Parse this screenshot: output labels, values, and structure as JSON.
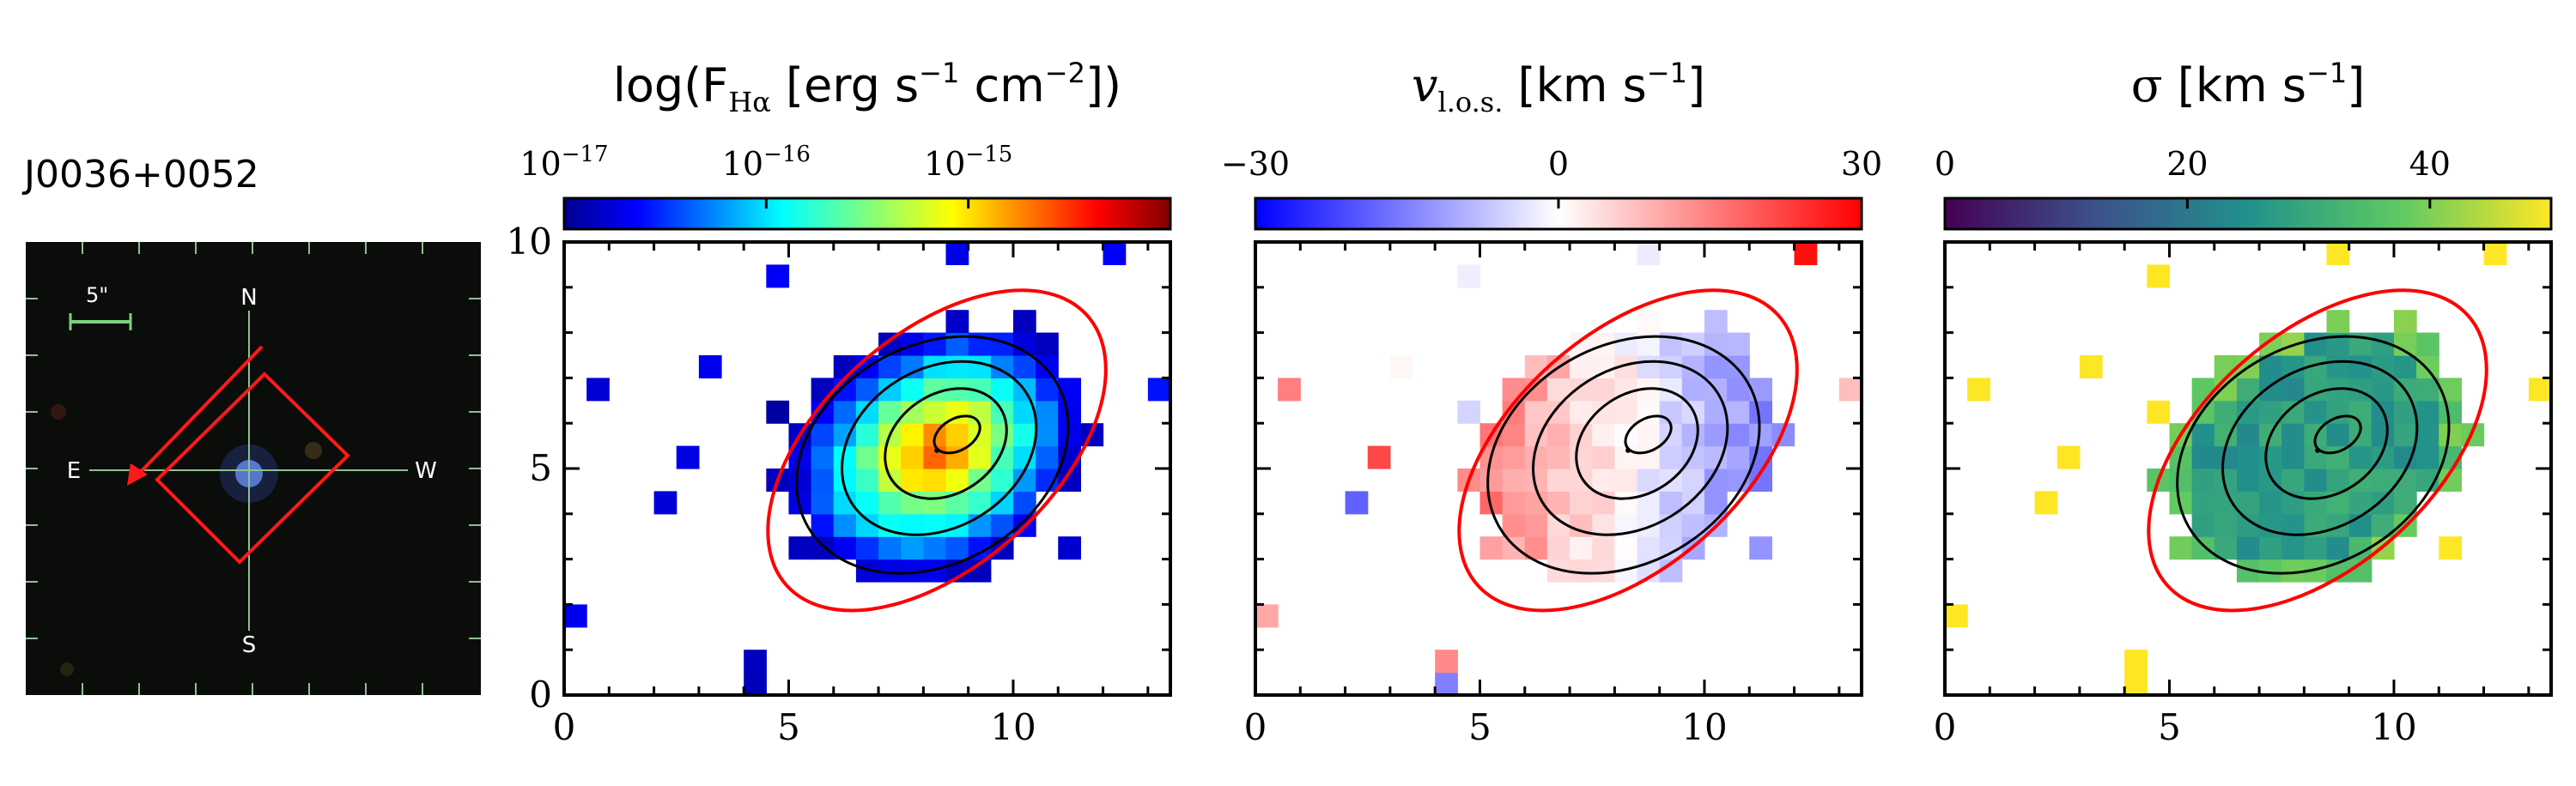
{
  "object_name": "J0036+0052",
  "thumbnail": {
    "scale_label": "5\"",
    "compass": {
      "north": "N",
      "south": "S",
      "east": "E",
      "west": "W"
    },
    "colors": {
      "background": "#0b0d0b",
      "slit": "#ff1a1a",
      "source": "#5577cc",
      "grid": "#8fbf8f"
    }
  },
  "colors": {
    "ellipse": "#ff0000",
    "contour": "#000000",
    "frame": "#000000"
  },
  "chart_data": [
    {
      "type": "heatmap",
      "name": "halpha-flux",
      "title": {
        "pre": "log(F",
        "sub": "Hα",
        "post": " [erg s",
        "exp1": "−1",
        "mid": " cm",
        "exp2": "−2",
        "end": "])"
      },
      "colorbar": {
        "cmap": "jet",
        "scale": "log",
        "range": [
          1e-17,
          1e-14
        ],
        "ticks": [
          {
            "value": 1e-17,
            "base": "10",
            "exp": "−17"
          },
          {
            "value": 1e-16,
            "base": "10",
            "exp": "−16"
          },
          {
            "value": 1e-15,
            "base": "10",
            "exp": "−15"
          }
        ]
      },
      "xlim": [
        0,
        13.5
      ],
      "ylim": [
        0,
        10
      ],
      "xticks": [
        0,
        5,
        10
      ],
      "yticks": [
        0,
        5,
        10
      ],
      "show_ytick_labels": true
    },
    {
      "type": "heatmap",
      "name": "velocity",
      "title": {
        "pre": "v",
        "sub": "l.o.s.",
        "post": " [km s",
        "exp1": "−1",
        "end": "]"
      },
      "colorbar": {
        "cmap": "bwr",
        "scale": "linear",
        "range": [
          -30,
          30
        ],
        "ticks": [
          {
            "value": -30,
            "label": "−30"
          },
          {
            "value": 0,
            "label": "0"
          },
          {
            "value": 30,
            "label": "30"
          }
        ]
      },
      "xlim": [
        0,
        13.5
      ],
      "ylim": [
        0,
        10
      ],
      "xticks": [
        0,
        5,
        10
      ],
      "yticks": [
        0,
        5,
        10
      ],
      "show_ytick_labels": false
    },
    {
      "type": "heatmap",
      "name": "dispersion",
      "title": {
        "pre": "σ",
        "post": " [km s",
        "exp1": "−1",
        "end": "]"
      },
      "colorbar": {
        "cmap": "viridis",
        "scale": "linear",
        "range": [
          0,
          50
        ],
        "ticks": [
          {
            "value": 0,
            "label": "0"
          },
          {
            "value": 20,
            "label": "20"
          },
          {
            "value": 40,
            "label": "40"
          }
        ]
      },
      "xlim": [
        0,
        13.5
      ],
      "ylim": [
        0,
        10
      ],
      "xticks": [
        0,
        5,
        10
      ],
      "yticks": [
        0,
        5,
        10
      ],
      "show_ytick_labels": false
    }
  ],
  "overlay": {
    "ellipse": {
      "cx": 8.3,
      "cy": 5.4,
      "rx": 4.5,
      "ry": 2.55,
      "angle_deg": 42
    },
    "contours": [
      {
        "cx": 8.2,
        "cy": 5.3,
        "rx": 3.2,
        "ry": 2.4,
        "angle_deg": 30
      },
      {
        "cx": 8.35,
        "cy": 5.45,
        "rx": 2.3,
        "ry": 1.75,
        "angle_deg": 32
      },
      {
        "cx": 8.5,
        "cy": 5.55,
        "rx": 1.45,
        "ry": 1.1,
        "angle_deg": 34
      },
      {
        "cx": 8.75,
        "cy": 5.75,
        "rx": 0.55,
        "ry": 0.35,
        "angle_deg": 30
      }
    ],
    "centroid": {
      "x": 8.3,
      "y": 5.4
    }
  }
}
